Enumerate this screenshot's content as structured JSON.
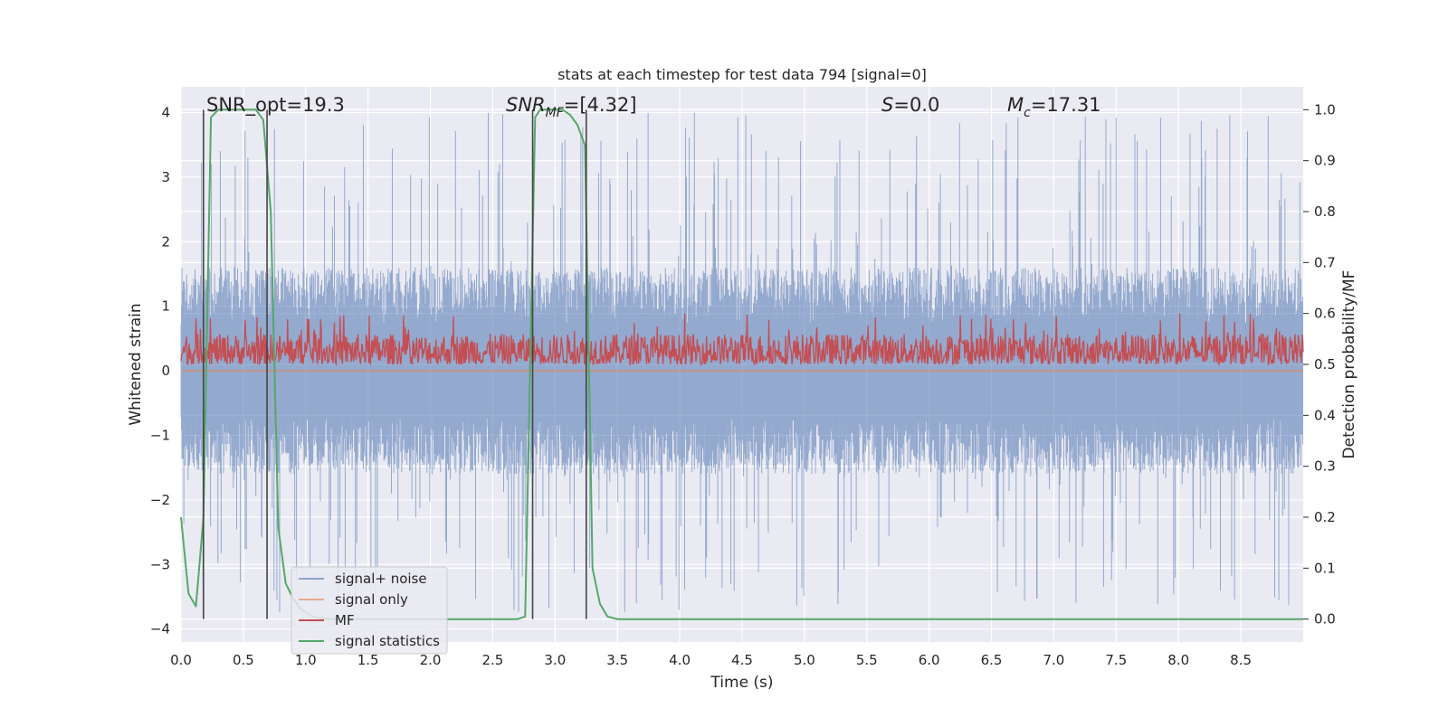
{
  "chart_data": {
    "type": "line",
    "title": "stats at each timestep for test data 794 [signal=0]",
    "xlabel": "Time (s)",
    "ylabel_left": "Whitened strain",
    "ylabel_right": "Detection probability/MF",
    "xlim": [
      0,
      9
    ],
    "ylim_left": [
      -4.2,
      4.4
    ],
    "ylim_right": [
      -0.045,
      1.045
    ],
    "x_ticks": [
      0.0,
      0.5,
      1.0,
      1.5,
      2.0,
      2.5,
      3.0,
      3.5,
      4.0,
      4.5,
      5.0,
      5.5,
      6.0,
      6.5,
      7.0,
      7.5,
      8.0,
      8.5
    ],
    "x_tick_labels": [
      "0.0",
      "0.5",
      "1.0",
      "1.5",
      "2.0",
      "2.5",
      "3.0",
      "3.5",
      "4.0",
      "4.5",
      "5.0",
      "5.5",
      "6.0",
      "6.5",
      "7.0",
      "7.5",
      "8.0",
      "8.5"
    ],
    "y_left_ticks": [
      -4,
      -3,
      -2,
      -1,
      0,
      1,
      2,
      3,
      4
    ],
    "y_left_tick_labels": [
      "−4",
      "−3",
      "−2",
      "−1",
      "0",
      "1",
      "2",
      "3",
      "4"
    ],
    "y_right_ticks": [
      0.0,
      0.1,
      0.2,
      0.3,
      0.4,
      0.5,
      0.6,
      0.7,
      0.8,
      0.9,
      1.0
    ],
    "y_right_tick_labels": [
      "0.0",
      "0.1",
      "0.2",
      "0.3",
      "0.4",
      "0.5",
      "0.6",
      "0.7",
      "0.8",
      "0.9",
      "1.0"
    ],
    "grid": true,
    "legend_position": "lower-left",
    "annotations": {
      "snr_opt": "SNR_opt=19.3",
      "snr_mf_prefix": "SNR",
      "snr_mf_sub": "MF",
      "snr_mf_suffix": "=[4.32]",
      "s_prefix": "S",
      "s_suffix": "=0.0",
      "mc_prefix": "M",
      "mc_sub": "c",
      "mc_suffix": "=17.31"
    },
    "detection_windows": [
      [
        0.18,
        0.69
      ],
      [
        2.82,
        3.25
      ]
    ],
    "series": [
      {
        "name": "signal+ noise",
        "color": "#4c72b0",
        "axis": "left",
        "noise_band": {
          "mean": 0.0,
          "typical_amplitude": 1.6,
          "peak_amplitude": 4.0
        }
      },
      {
        "name": "signal only",
        "color": "#dd8452",
        "axis": "left",
        "values_summary": "flat at 0"
      },
      {
        "name": "MF",
        "color": "#c44e52",
        "axis": "right",
        "band": {
          "min": 0.5,
          "typical_max": 0.56,
          "peak": 0.6
        }
      },
      {
        "name": "signal statistics",
        "color": "#55a868",
        "axis": "right",
        "x": [
          0.0,
          0.06,
          0.12,
          0.18,
          0.24,
          0.3,
          0.36,
          0.42,
          0.48,
          0.54,
          0.6,
          0.66,
          0.72,
          0.78,
          0.84,
          0.9,
          0.96,
          1.02,
          1.08,
          1.2,
          1.5,
          2.0,
          2.5,
          2.7,
          2.76,
          2.8,
          2.84,
          2.88,
          2.94,
          3.0,
          3.06,
          3.12,
          3.18,
          3.24,
          3.3,
          3.36,
          3.42,
          3.5,
          4.0,
          5.0,
          6.0,
          7.0,
          8.0,
          9.0
        ],
        "y": [
          0.2,
          0.05,
          0.025,
          0.2,
          0.985,
          1.0,
          1.0,
          1.0,
          1.0,
          1.0,
          1.0,
          0.98,
          0.8,
          0.18,
          0.07,
          0.04,
          0.02,
          0.01,
          0.003,
          0.0,
          0.0,
          0.0,
          0.0,
          0.0,
          0.005,
          0.5,
          0.985,
          1.0,
          1.0,
          1.0,
          1.0,
          0.99,
          0.97,
          0.93,
          0.1,
          0.03,
          0.005,
          0.0,
          0.0,
          0.0,
          0.0,
          0.0,
          0.0,
          0.0
        ]
      }
    ]
  }
}
